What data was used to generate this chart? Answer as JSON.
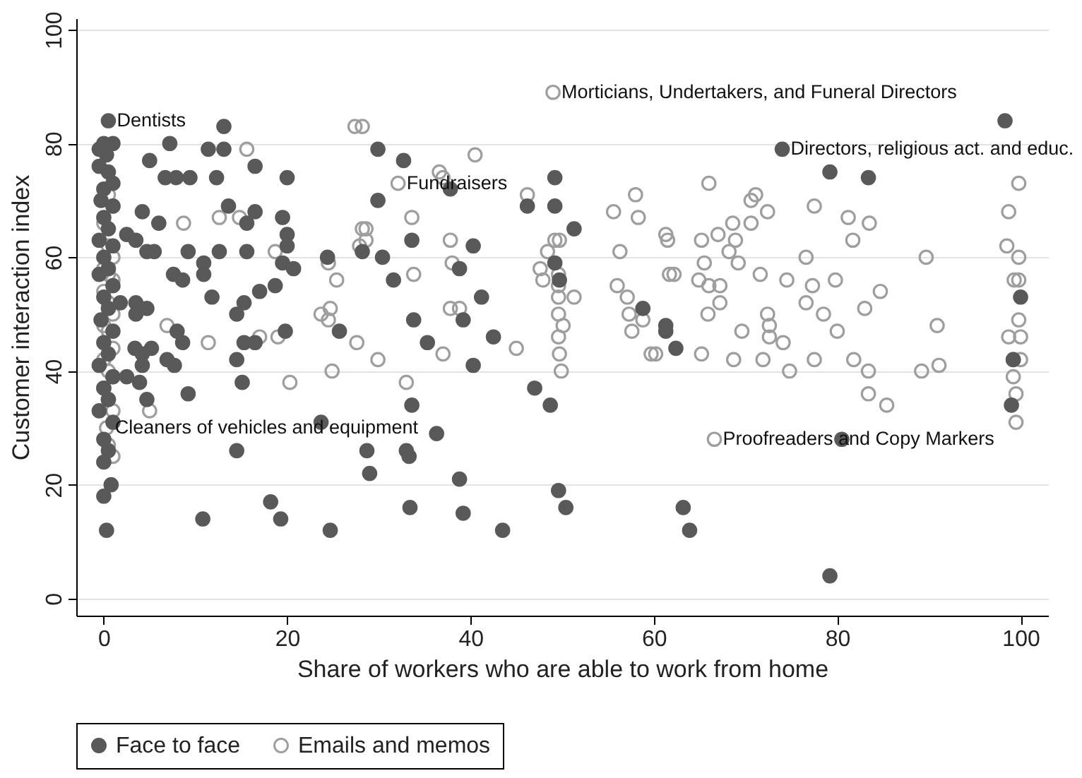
{
  "chart_data": {
    "type": "scatter",
    "xlabel": "Share of workers who are able to work from home",
    "ylabel": "Customer interaction index",
    "xlim": [
      -3,
      103
    ],
    "ylim": [
      -3,
      102
    ],
    "xticks": [
      0,
      20,
      40,
      60,
      80,
      100
    ],
    "yticks": [
      0,
      20,
      40,
      60,
      80,
      100
    ],
    "grid": "y",
    "legend": "bottom",
    "marker": "circle",
    "series": [
      {
        "name": "Face to face",
        "color": "#595959",
        "x": [
          0.5,
          0,
          1,
          -0.5,
          0.3,
          -0.5,
          0.5,
          1,
          0,
          -0.3,
          1,
          0,
          0.5,
          -0.5,
          1,
          0,
          0.5,
          -0.5,
          1,
          0,
          0.5,
          -0.3,
          1,
          0,
          0.5,
          -0.5,
          1,
          0,
          0.5,
          -0.5,
          1,
          0,
          0.5,
          0,
          0.8,
          0,
          0.3,
          13.1,
          7.2,
          11.4,
          13.1,
          5,
          16.5,
          6.7,
          7.9,
          9.4,
          12.3,
          20,
          13.6,
          16.5,
          4.2,
          6,
          15.6,
          19.5,
          20,
          20,
          2.5,
          3.5,
          4.7,
          5.5,
          9.2,
          12.6,
          15.6,
          19.5,
          20.7,
          7.6,
          8.6,
          10.9,
          10.9,
          24.4,
          28.2,
          18.7,
          17,
          11.8,
          15.3,
          14.5,
          1.8,
          3.5,
          4.7,
          3.5,
          25.7,
          19.8,
          8,
          8.6,
          15.3,
          16.5,
          3.4,
          4.2,
          5.2,
          6.9,
          7.7,
          14.5,
          4.2,
          2.5,
          3.9,
          15.1,
          4.7,
          9.2,
          23.7,
          28.7,
          14.5,
          29,
          18.2,
          19.3,
          10.8,
          24.7,
          29.9,
          32.7,
          49.2,
          37.8,
          29.9,
          46.2,
          49.2,
          51.3,
          33.6,
          40.3,
          30.4,
          38.8,
          49.2,
          49.7,
          31.6,
          41.2,
          33.8,
          39.2,
          58.8,
          61.3,
          42.5,
          35.3,
          40.3,
          47,
          33.6,
          48.7,
          36.3,
          33,
          33.3,
          38.8,
          49.6,
          50.4,
          33.4,
          39.2,
          43.5,
          98.3,
          74,
          79.2,
          83.4,
          100,
          61.3,
          62.4,
          99.2,
          99,
          80.5,
          63.2,
          63.9,
          79.2
        ],
        "values": [
          84,
          80,
          80,
          79,
          78,
          76,
          75,
          73,
          72,
          70,
          69,
          67,
          65,
          63,
          62,
          60,
          58,
          57,
          55,
          53,
          51,
          49,
          47,
          45,
          43,
          41,
          39,
          37,
          35,
          33,
          31,
          28,
          26,
          24,
          20,
          18,
          12,
          83,
          80,
          79,
          79,
          77,
          76,
          74,
          74,
          74,
          74,
          74,
          69,
          68,
          68,
          66,
          66,
          67,
          64,
          62,
          64,
          63,
          61,
          61,
          61,
          61,
          61,
          59,
          58,
          57,
          56,
          59,
          57,
          60,
          61,
          55,
          54,
          53,
          52,
          50,
          52,
          52,
          51,
          50,
          47,
          47,
          47,
          45,
          45,
          45,
          44,
          43,
          44,
          42,
          41,
          42,
          41,
          39,
          38,
          38,
          35,
          36,
          31,
          26,
          26,
          22,
          17,
          14,
          14,
          12,
          79,
          77,
          74,
          72,
          70,
          69,
          69,
          65,
          63,
          62,
          60,
          58,
          59,
          56,
          56,
          53,
          49,
          49,
          51,
          48,
          46,
          45,
          41,
          37,
          34,
          34,
          29,
          26,
          25,
          21,
          19,
          16,
          16,
          15,
          12,
          84,
          79,
          75,
          74,
          53,
          47,
          44,
          42,
          34,
          28,
          16,
          12,
          4
        ]
      },
      {
        "name": "Emails and memos",
        "color": "#9e9e9e",
        "x": [
          0.5,
          1,
          0,
          0.5,
          1,
          0,
          0.5,
          1,
          0,
          0.5,
          1,
          0,
          0.5,
          1,
          0,
          0.5,
          1,
          0,
          0.5,
          1,
          0.3,
          0.5,
          1,
          15.6,
          12.6,
          14.8,
          8.7,
          18.7,
          28.2,
          27.9,
          24.5,
          25.4,
          23.7,
          24.5,
          24.7,
          6.9,
          11.4,
          17,
          19,
          27.6,
          24.9,
          20.3,
          5,
          27.4,
          28.2,
          40.5,
          36.6,
          37,
          32.1,
          46.2,
          33.6,
          28.6,
          28.6,
          37.8,
          48.4,
          49.2,
          49.7,
          38,
          47.6,
          47.9,
          49.6,
          49.6,
          33.8,
          51.3,
          49.6,
          37.8,
          38.8,
          49.6,
          50.1,
          49.6,
          37,
          45,
          49.7,
          29.9,
          49.9,
          33,
          55.6,
          58,
          58.3,
          61.3,
          61.7,
          56.3,
          56,
          57.1,
          57.3,
          57.6,
          58.8,
          59.7,
          49,
          66,
          71.1,
          70.6,
          61.5,
          65.2,
          67,
          68.9,
          68.6,
          70.6,
          72.4,
          77.5,
          81.2,
          83.5,
          81.7,
          68.2,
          69.2,
          65.5,
          76.6,
          89.7,
          62.2,
          64.9,
          66,
          67.2,
          71.6,
          74.5,
          77.3,
          79.8,
          84.7,
          67.2,
          65.9,
          76.6,
          78.5,
          80,
          83,
          72.4,
          72.6,
          72.6,
          74.1,
          69.6,
          90.9,
          60.2,
          65.2,
          68.7,
          71.9,
          74.8,
          77.5,
          81.8,
          83.4,
          83.4,
          85.4,
          89.2,
          91.1,
          66.6,
          99.8,
          98.7,
          98.5,
          99.8,
          99.3,
          99.8,
          99.8,
          98.7,
          100,
          99.2,
          100,
          99.2,
          99.5,
          99.5
        ],
        "values": [
          71,
          69,
          66,
          62,
          60,
          58,
          57,
          56,
          54,
          52,
          50,
          48,
          47,
          44,
          42,
          40,
          39,
          37,
          35,
          33,
          30,
          27,
          25,
          79,
          67,
          67,
          66,
          61,
          65,
          62,
          59,
          56,
          50,
          49,
          51,
          48,
          45,
          46,
          46,
          45,
          40,
          38,
          33,
          83,
          83,
          78,
          75,
          74,
          73,
          71,
          67,
          65,
          63,
          63,
          61,
          63,
          63,
          59,
          58,
          56,
          57,
          55,
          57,
          53,
          53,
          51,
          51,
          50,
          48,
          46,
          43,
          44,
          43,
          42,
          40,
          38,
          68,
          71,
          67,
          64,
          57,
          61,
          55,
          53,
          50,
          47,
          49,
          43,
          89,
          73,
          71,
          70,
          63,
          63,
          64,
          63,
          66,
          66,
          68,
          69,
          67,
          66,
          63,
          61,
          59,
          59,
          60,
          60,
          57,
          56,
          55,
          55,
          57,
          56,
          55,
          56,
          54,
          52,
          50,
          52,
          50,
          47,
          51,
          50,
          48,
          46,
          45,
          47,
          48,
          43,
          43,
          42,
          42,
          40,
          42,
          42,
          40,
          36,
          34,
          40,
          41,
          28,
          73,
          68,
          62,
          60,
          56,
          56,
          49,
          46,
          46,
          42,
          42,
          39,
          36,
          31
        ]
      }
    ],
    "annotations": [
      {
        "text": "Dentists",
        "x": 0.5,
        "y": 84
      },
      {
        "text": "Cleaners of vehicles and equipment",
        "x": 0.3,
        "y": 30
      },
      {
        "text": "Fundraisers",
        "x": 32.1,
        "y": 73
      },
      {
        "text": "Morticians, Undertakers, and Funeral Directors",
        "x": 49,
        "y": 89
      },
      {
        "text": "Directors, religious act. and educ.",
        "x": 74,
        "y": 79
      },
      {
        "text": "Proofreaders and Copy Markers",
        "x": 66.6,
        "y": 28
      }
    ]
  }
}
